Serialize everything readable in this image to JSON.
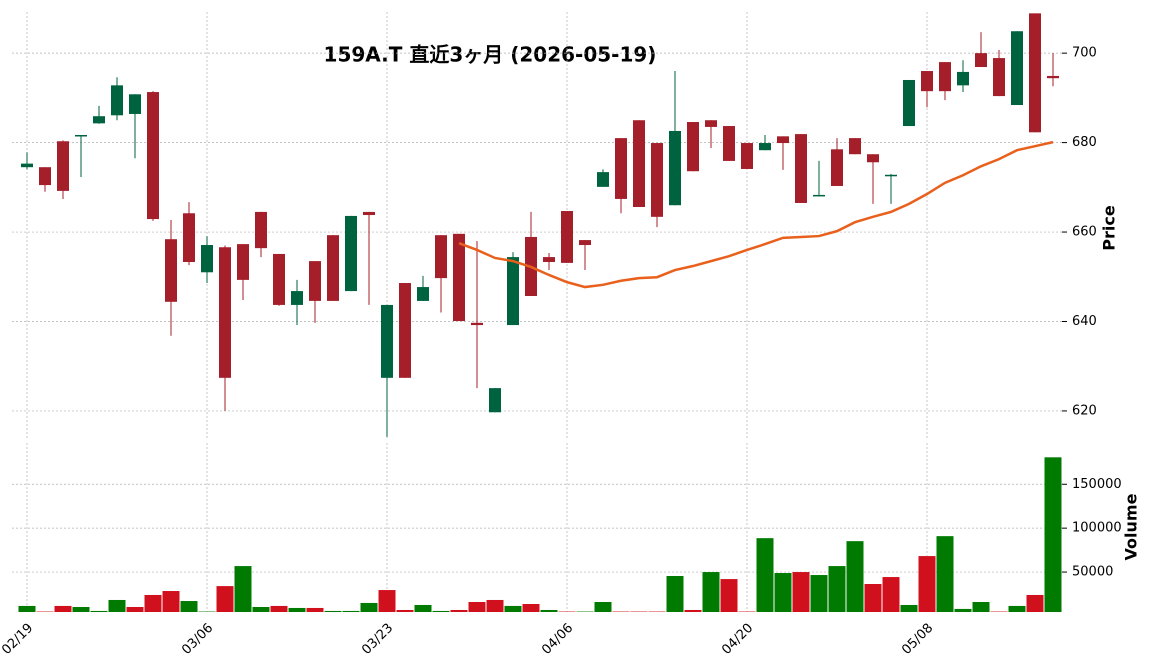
{
  "chart_data": {
    "type": "candlestick",
    "title": "159A.T  直近3ヶ月  (2026-05-19)",
    "categories": [
      "02/19",
      null,
      null,
      null,
      null,
      null,
      null,
      null,
      null,
      null,
      "03/06",
      null,
      null,
      null,
      null,
      null,
      null,
      null,
      null,
      null,
      "03/23",
      null,
      null,
      null,
      null,
      null,
      null,
      null,
      null,
      null,
      "04/06",
      null,
      null,
      null,
      null,
      null,
      null,
      null,
      null,
      null,
      "04/20",
      null,
      null,
      null,
      null,
      null,
      null,
      null,
      null,
      null,
      "05/08",
      null,
      null,
      null,
      null,
      null,
      null,
      null
    ],
    "open": [
      674.5,
      674.5,
      680.3,
      681.4,
      684.3,
      686.1,
      686.4,
      691.3,
      658.4,
      664.2,
      651,
      656.6,
      657.3,
      664.5,
      655.1,
      643.7,
      653.5,
      659.3,
      646.8,
      664.5,
      627.4,
      648.6,
      644.6,
      659.3,
      659.6,
      639.7,
      619.7,
      639.2,
      658.9,
      654.4,
      664.7,
      658.2,
      670.1,
      681,
      685,
      679.9,
      666,
      684.6,
      685,
      683.7,
      679.9,
      678.3,
      681.4,
      681.9,
      668,
      678.5,
      681,
      677.4,
      672.5,
      683.7,
      696,
      698,
      692.8,
      700,
      698.9,
      688.4,
      708.9,
      694.9
    ],
    "high": [
      677.8,
      674.5,
      680.5,
      681.7,
      688.2,
      694.6,
      690.8,
      691.5,
      662.7,
      666.7,
      659.1,
      657,
      657.3,
      664.5,
      655.1,
      649.3,
      653.5,
      659.3,
      663.6,
      664.5,
      643.7,
      648.6,
      650.2,
      659.3,
      659.6,
      658,
      625.1,
      655.5,
      664.5,
      655.3,
      664.7,
      658.2,
      674,
      681,
      685,
      679.9,
      696,
      684.6,
      685,
      683.7,
      679.9,
      681.7,
      681.4,
      681.9,
      675.9,
      681,
      681,
      677.4,
      673,
      694,
      696,
      698,
      698.4,
      704.7,
      700.7,
      704.9,
      708.9,
      700
    ],
    "low": [
      674,
      669,
      667.4,
      672.3,
      684.2,
      685,
      676.5,
      662.5,
      636.8,
      652.6,
      648.6,
      620,
      644.8,
      654.4,
      643.5,
      639.2,
      639.7,
      644.6,
      646.8,
      643.7,
      614.2,
      627.4,
      644.6,
      642,
      640.1,
      625.1,
      619.7,
      639.2,
      645.7,
      651.5,
      653.1,
      651.5,
      670.1,
      664.2,
      665.6,
      661.1,
      666,
      673.6,
      678.8,
      675.9,
      674.1,
      678.3,
      673.9,
      666.5,
      668,
      670.3,
      677.4,
      666.3,
      666.3,
      683.7,
      687.9,
      689.5,
      691.3,
      696.9,
      690.4,
      688.4,
      682.3,
      692.6
    ],
    "close": [
      675.3,
      670.5,
      669.2,
      681.7,
      685.9,
      692.8,
      690.8,
      662.9,
      644.4,
      653.3,
      657.1,
      627.4,
      649.3,
      656.4,
      643.7,
      646.8,
      644.6,
      644.6,
      663.6,
      663.8,
      643.7,
      627.4,
      647.7,
      649.7,
      640.1,
      639.2,
      625.1,
      654.4,
      645.7,
      653.3,
      653.1,
      657.1,
      673.4,
      667.4,
      665.6,
      663.4,
      682.6,
      673.6,
      683.5,
      675.9,
      674.1,
      679.9,
      679.9,
      666.5,
      668.3,
      670.3,
      677.4,
      675.6,
      672.8,
      694,
      691.5,
      691.5,
      695.8,
      696.9,
      690.4,
      704.9,
      682.3,
      694.4
    ],
    "ylim": [
      613.5,
      709.2
    ],
    "yticks": [
      620,
      640,
      660,
      680,
      700
    ],
    "ylabel": "Price",
    "up_color": "#00633f",
    "down_color": "#a51f2a",
    "grid": true,
    "ma": {
      "color": "#e8601c",
      "values": [
        null,
        null,
        null,
        null,
        null,
        null,
        null,
        null,
        null,
        null,
        null,
        null,
        null,
        null,
        null,
        null,
        null,
        null,
        null,
        null,
        null,
        null,
        null,
        null,
        657.5,
        656,
        654.2,
        653.5,
        652.2,
        650.4,
        648.8,
        647.7,
        648.2,
        649.1,
        649.7,
        649.9,
        651.5,
        652.4,
        653.5,
        654.6,
        656,
        657.3,
        658.7,
        658.9,
        659.1,
        660.2,
        662.2,
        663.4,
        664.5,
        666.3,
        668.5,
        671,
        672.7,
        674.7,
        676.3,
        678.3,
        679.2,
        680.1
      ]
    },
    "volume": {
      "values": [
        11400,
        5000,
        11400,
        10200,
        5700,
        18200,
        10200,
        23900,
        28400,
        17000,
        5000,
        34000,
        56800,
        10200,
        11400,
        9100,
        9100,
        5700,
        5700,
        14800,
        29500,
        6800,
        12500,
        5700,
        6800,
        15900,
        18200,
        11400,
        13600,
        6800,
        5000,
        5000,
        15900,
        5000,
        5000,
        5000,
        45500,
        6800,
        50000,
        42000,
        5000,
        88600,
        48900,
        50000,
        46600,
        56800,
        85200,
        36400,
        44300,
        12500,
        68200,
        90900,
        8000,
        15900,
        5000,
        11400,
        23900,
        180700
      ],
      "ylim": [
        4500,
        197000
      ],
      "yticks": [
        50000,
        100000,
        150000
      ],
      "ylabel": "Volume",
      "up_color": "#007a00",
      "down_color": "#d0101c"
    }
  }
}
